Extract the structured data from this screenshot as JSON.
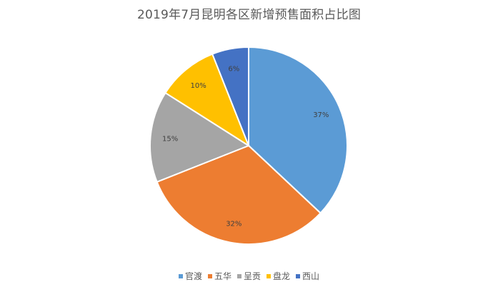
{
  "chart_data": {
    "type": "pie",
    "title": "2019年7月昆明各区新增预售面积占比图",
    "categories": [
      "官渡",
      "五华",
      "呈贡",
      "盘龙",
      "西山"
    ],
    "values": [
      37,
      32,
      15,
      10,
      6
    ],
    "value_labels": [
      "37%",
      "32%",
      "15%",
      "10%",
      "6%"
    ],
    "colors": [
      "#5B9BD5",
      "#ED7D31",
      "#A5A5A5",
      "#FFC000",
      "#4472C4"
    ],
    "legend_position": "bottom",
    "start_angle": "12 o'clock",
    "direction": "clockwise"
  }
}
